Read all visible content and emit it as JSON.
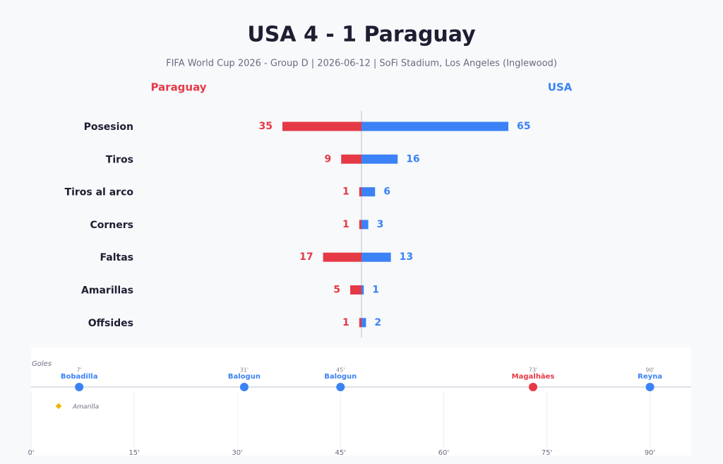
{
  "header": {
    "title": "USA 4  -  1 Paraguay",
    "subtitle": "FIFA World Cup 2026 - Group D  |  2026-06-12  |  SoFi Stadium, Los Angeles (Inglewood)"
  },
  "chart_data": [
    {
      "type": "diverging-bar",
      "categories": [
        "Posesion",
        "Tiros",
        "Tiros al arco",
        "Corners",
        "Faltas",
        "Amarillas",
        "Offsides"
      ],
      "series": [
        {
          "name": "Paraguay",
          "color": "#e63946",
          "values": [
            35,
            9,
            1,
            1,
            17,
            5,
            1
          ]
        },
        {
          "name": "USA",
          "color": "#3b82f6",
          "values": [
            65,
            16,
            6,
            3,
            13,
            1,
            2
          ]
        }
      ],
      "xlim": [
        0,
        100
      ]
    },
    {
      "type": "timeline",
      "title": "Goles",
      "x": [
        7,
        31,
        45,
        73,
        90
      ],
      "value_labels": [
        "7'",
        "31'",
        "45'",
        "73'",
        "90'"
      ],
      "labels": [
        "Bobadilla",
        "Balogun",
        "Balogun",
        "Magalhães",
        "Reyna"
      ],
      "colors": [
        "#3b82f6",
        "#3b82f6",
        "#3b82f6",
        "#e63946",
        "#3b82f6"
      ],
      "legend": {
        "name": "Amarilla",
        "color": "#f0b400"
      },
      "xlim": [
        0,
        96
      ],
      "xticks": [
        {
          "value": 0,
          "label": "0'"
        },
        {
          "value": 15,
          "label": "15'"
        },
        {
          "value": 30,
          "label": "30'"
        },
        {
          "value": 45,
          "label": "45'"
        },
        {
          "value": 60,
          "label": "60'"
        },
        {
          "value": 75,
          "label": "75'"
        },
        {
          "value": 90,
          "label": "90'"
        }
      ],
      "grid": true
    }
  ]
}
